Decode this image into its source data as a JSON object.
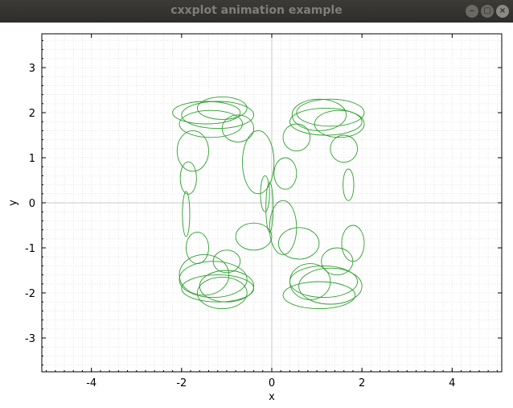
{
  "window": {
    "title": "cxxplot animation example",
    "buttons": {
      "minimize": "–",
      "maximize": "□",
      "close": "×"
    }
  },
  "chart_data": {
    "type": "line",
    "title": "",
    "xlabel": "x",
    "ylabel": "y",
    "xlim": [
      -5.1,
      5.1
    ],
    "ylim": [
      -3.75,
      3.75
    ],
    "xticks": [
      -4,
      -2,
      0,
      2,
      4
    ],
    "yticks": [
      -3,
      -2,
      -1,
      0,
      1,
      2,
      3
    ],
    "grid": true,
    "legend": "none",
    "colors": {
      "series": "#2ca02c",
      "grid_minor": "#e4e4e4",
      "grid_major": "#c8c8c8"
    },
    "series": [
      {
        "description_free": true,
        "ellipses": [
          {
            "cx": -1.45,
            "cy": 2.0,
            "rx": 0.75,
            "ry": 0.25
          },
          {
            "cx": -1.2,
            "cy": 1.95,
            "rx": 0.8,
            "ry": 0.3
          },
          {
            "cx": -1.35,
            "cy": 1.75,
            "rx": 0.7,
            "ry": 0.3
          },
          {
            "cx": -1.1,
            "cy": 2.1,
            "rx": 0.55,
            "ry": 0.25
          },
          {
            "cx": -0.75,
            "cy": 1.65,
            "rx": 0.35,
            "ry": 0.3
          },
          {
            "cx": -1.75,
            "cy": 1.15,
            "rx": 0.35,
            "ry": 0.45
          },
          {
            "cx": -0.3,
            "cy": 0.9,
            "rx": 0.35,
            "ry": 0.7
          },
          {
            "cx": -1.85,
            "cy": 0.55,
            "rx": 0.18,
            "ry": 0.36
          },
          {
            "cx": -1.9,
            "cy": -0.25,
            "rx": 0.08,
            "ry": 0.5
          },
          {
            "cx": -0.15,
            "cy": 0.2,
            "rx": 0.1,
            "ry": 0.4
          },
          {
            "cx": -0.05,
            "cy": -0.1,
            "rx": 0.08,
            "ry": 0.55
          },
          {
            "cx": -1.65,
            "cy": -1.0,
            "rx": 0.25,
            "ry": 0.35
          },
          {
            "cx": -0.4,
            "cy": -0.75,
            "rx": 0.4,
            "ry": 0.3
          },
          {
            "cx": -1.0,
            "cy": -1.3,
            "rx": 0.3,
            "ry": 0.25
          },
          {
            "cx": -1.3,
            "cy": -1.7,
            "rx": 0.75,
            "ry": 0.4
          },
          {
            "cx": -1.5,
            "cy": -1.6,
            "rx": 0.55,
            "ry": 0.45
          },
          {
            "cx": -1.2,
            "cy": -1.9,
            "rx": 0.8,
            "ry": 0.3
          },
          {
            "cx": -1.0,
            "cy": -1.85,
            "rx": 0.6,
            "ry": 0.35
          },
          {
            "cx": -1.1,
            "cy": -2.0,
            "rx": 0.55,
            "ry": 0.35
          },
          {
            "cx": 1.3,
            "cy": 2.0,
            "rx": 0.75,
            "ry": 0.3
          },
          {
            "cx": 1.2,
            "cy": 1.8,
            "rx": 0.8,
            "ry": 0.3
          },
          {
            "cx": 1.05,
            "cy": 1.95,
            "rx": 0.6,
            "ry": 0.35
          },
          {
            "cx": 1.5,
            "cy": 1.75,
            "rx": 0.55,
            "ry": 0.3
          },
          {
            "cx": 0.55,
            "cy": 1.45,
            "rx": 0.3,
            "ry": 0.3
          },
          {
            "cx": 1.6,
            "cy": 1.2,
            "rx": 0.3,
            "ry": 0.3
          },
          {
            "cx": 0.3,
            "cy": 0.65,
            "rx": 0.25,
            "ry": 0.35
          },
          {
            "cx": 1.7,
            "cy": 0.4,
            "rx": 0.12,
            "ry": 0.35
          },
          {
            "cx": 0.25,
            "cy": -0.55,
            "rx": 0.3,
            "ry": 0.6
          },
          {
            "cx": 1.8,
            "cy": -0.9,
            "rx": 0.25,
            "ry": 0.4
          },
          {
            "cx": 0.6,
            "cy": -0.9,
            "rx": 0.45,
            "ry": 0.35
          },
          {
            "cx": 1.45,
            "cy": -1.3,
            "rx": 0.35,
            "ry": 0.3
          },
          {
            "cx": 1.15,
            "cy": -1.75,
            "rx": 0.75,
            "ry": 0.35
          },
          {
            "cx": 1.3,
            "cy": -1.85,
            "rx": 0.7,
            "ry": 0.4
          },
          {
            "cx": 1.05,
            "cy": -2.05,
            "rx": 0.8,
            "ry": 0.3
          },
          {
            "cx": 0.85,
            "cy": -1.75,
            "rx": 0.45,
            "ry": 0.4
          }
        ]
      }
    ]
  }
}
